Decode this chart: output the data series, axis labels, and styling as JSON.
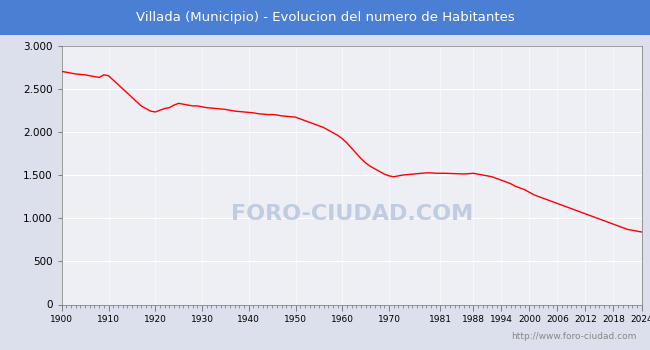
{
  "title": "Villada (Municipio) - Evolucion del numero de Habitantes",
  "title_bg_color": "#4a7fd4",
  "title_text_color": "#ffffff",
  "line_color": "#ff0000",
  "bg_color": "#dce0ec",
  "plot_bg_color": "#eeeef5",
  "grid_color": "#ffffff",
  "footer_text": "http://www.foro-ciudad.com",
  "footer_color": "#888888",
  "watermark_text": "FORO-CIUDAD.COM",
  "watermark_color": "#c0cce0",
  "ylim": [
    0,
    3000
  ],
  "yticks": [
    0,
    500,
    1000,
    1500,
    2000,
    2500,
    3000
  ],
  "ytick_labels": [
    "0",
    "500",
    "1.000",
    "1.500",
    "2.000",
    "2.500",
    "3.000"
  ],
  "xticks": [
    1900,
    1910,
    1920,
    1930,
    1940,
    1950,
    1960,
    1970,
    1981,
    1988,
    1994,
    2000,
    2006,
    2012,
    2018,
    2024
  ],
  "years": [
    1900,
    1901,
    1902,
    1903,
    1904,
    1905,
    1906,
    1907,
    1908,
    1909,
    1910,
    1911,
    1912,
    1913,
    1914,
    1915,
    1916,
    1917,
    1918,
    1919,
    1920,
    1921,
    1922,
    1923,
    1924,
    1925,
    1926,
    1927,
    1928,
    1929,
    1930,
    1931,
    1932,
    1933,
    1934,
    1935,
    1936,
    1937,
    1938,
    1939,
    1940,
    1941,
    1942,
    1943,
    1944,
    1945,
    1946,
    1947,
    1948,
    1949,
    1950,
    1951,
    1952,
    1953,
    1954,
    1955,
    1956,
    1957,
    1958,
    1959,
    1960,
    1961,
    1962,
    1963,
    1964,
    1965,
    1966,
    1967,
    1968,
    1969,
    1970,
    1971,
    1972,
    1973,
    1974,
    1975,
    1976,
    1977,
    1978,
    1979,
    1980,
    1981,
    1982,
    1983,
    1984,
    1985,
    1986,
    1987,
    1988,
    1989,
    1990,
    1991,
    1992,
    1993,
    1994,
    1995,
    1996,
    1997,
    1998,
    1999,
    2000,
    2001,
    2002,
    2003,
    2004,
    2005,
    2006,
    2007,
    2008,
    2009,
    2010,
    2011,
    2012,
    2013,
    2014,
    2015,
    2016,
    2017,
    2018,
    2019,
    2020,
    2021,
    2022,
    2023,
    2024
  ],
  "population": [
    2700,
    2690,
    2680,
    2670,
    2665,
    2660,
    2650,
    2640,
    2630,
    2660,
    2650,
    2600,
    2550,
    2500,
    2450,
    2400,
    2350,
    2300,
    2270,
    2240,
    2230,
    2250,
    2270,
    2280,
    2310,
    2330,
    2320,
    2310,
    2300,
    2300,
    2290,
    2280,
    2275,
    2270,
    2265,
    2260,
    2250,
    2240,
    2235,
    2230,
    2225,
    2220,
    2210,
    2205,
    2200,
    2200,
    2195,
    2185,
    2180,
    2175,
    2170,
    2150,
    2130,
    2110,
    2090,
    2070,
    2050,
    2020,
    1990,
    1960,
    1920,
    1870,
    1810,
    1750,
    1690,
    1640,
    1600,
    1570,
    1540,
    1510,
    1490,
    1480,
    1490,
    1500,
    1505,
    1510,
    1515,
    1520,
    1525,
    1525,
    1520,
    1520,
    1520,
    1518,
    1516,
    1514,
    1512,
    1515,
    1520,
    1510,
    1500,
    1490,
    1480,
    1460,
    1440,
    1420,
    1400,
    1370,
    1350,
    1330,
    1300,
    1270,
    1250,
    1230,
    1210,
    1190,
    1170,
    1150,
    1130,
    1110,
    1090,
    1070,
    1050,
    1030,
    1010,
    990,
    970,
    950,
    930,
    910,
    890,
    870,
    860,
    850,
    840
  ]
}
